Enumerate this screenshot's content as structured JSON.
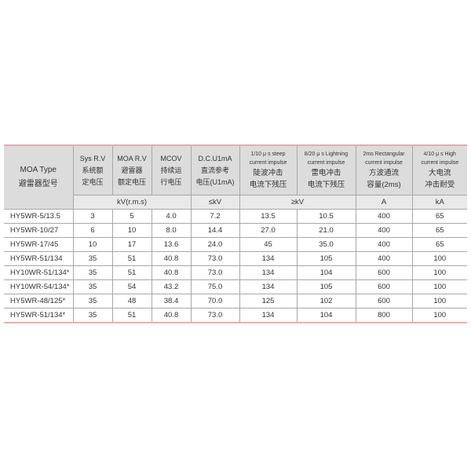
{
  "header": {
    "type_en": "MOA  Type",
    "type_cn": "避雷器型号",
    "cols": [
      {
        "l1": "Sys R.V",
        "l2": "系统额",
        "l3": "定电压"
      },
      {
        "l1": "MOA R.V",
        "l2": "避雷器",
        "l3": "额定电压"
      },
      {
        "l1": "MCOV",
        "l2": "持续运",
        "l3": "行电压"
      },
      {
        "l1": "D.C.U1mA",
        "l2": "直流参考",
        "l3": "电压(U1mA)"
      },
      {
        "l0": "1/10 μ s steep",
        "l1": "current impulse",
        "l2": "陡波冲击",
        "l3": "电流下残压"
      },
      {
        "l0": "8/20 μ s Lightning",
        "l1": "current impulse",
        "l2": "雷电冲击",
        "l3": "电流下残压"
      },
      {
        "l0": "2ms Rectangular",
        "l1": "current impulse",
        "l2": "方波通流",
        "l3": "容量(2ms)"
      },
      {
        "l0": "4/10 μ s High",
        "l1": "current impulse",
        "l2": "大电流",
        "l3": "冲击耐受"
      }
    ]
  },
  "units": {
    "u1": "kV(r.m.s)",
    "u2": "≤kV",
    "u3": "≥kV",
    "u4": "A",
    "u5": "kA"
  },
  "rows": [
    [
      "HY5WR-5/13.5",
      "3",
      "5",
      "4.0",
      "7.2",
      "13.5",
      "10.5",
      "400",
      "65"
    ],
    [
      "HY5WR-10/27",
      "6",
      "10",
      "8.0",
      "14.4",
      "27.0",
      "21.0",
      "400",
      "65"
    ],
    [
      "HY5WR-17/45",
      "10",
      "17",
      "13.6",
      "24.0",
      "45",
      "35.0",
      "400",
      "65"
    ],
    [
      "HY5WR-51/134",
      "35",
      "51",
      "40.8",
      "73.0",
      "134",
      "105",
      "400",
      "100"
    ],
    [
      "HY10WR-51/134*",
      "35",
      "51",
      "40.8",
      "73.0",
      "134",
      "104",
      "600",
      "100"
    ],
    [
      "HY10WR-54/134*",
      "35",
      "54",
      "43.2",
      "75.0",
      "134",
      "105",
      "600",
      "100"
    ],
    [
      "HY5WR-48/125*",
      "35",
      "48",
      "38.4",
      "70.0",
      "125",
      "102",
      "600",
      "100"
    ],
    [
      "HY5WR-51/134*",
      "35",
      "51",
      "40.8",
      "73.0",
      "134",
      "104",
      "800",
      "100"
    ]
  ]
}
